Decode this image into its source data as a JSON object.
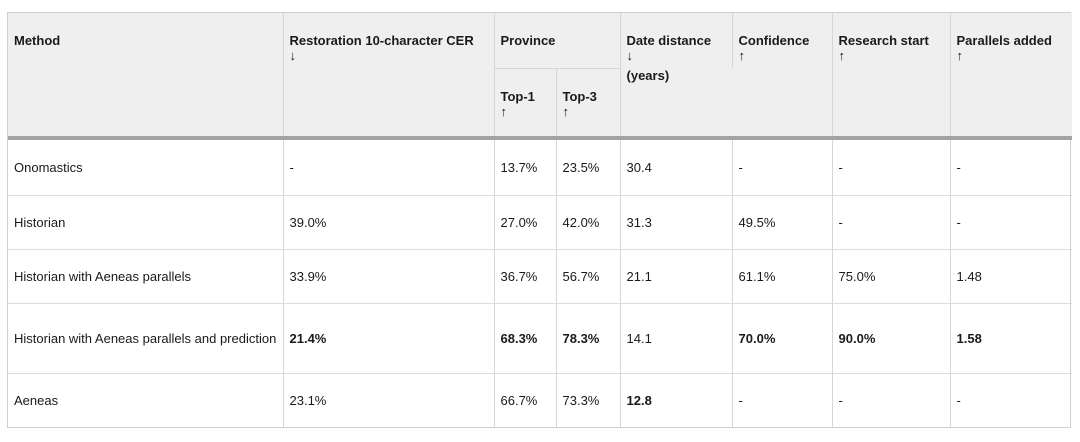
{
  "header": {
    "method": "Method",
    "restoration": "Restoration 10-character CER",
    "restoration_arrow": "↓",
    "province": "Province",
    "top1": "Top-1",
    "top1_arrow": "↑",
    "top3": "Top-3",
    "top3_arrow": "↑",
    "date": "Date distance",
    "date_arrow": "↓",
    "date_units": "(years)",
    "confidence": "Confidence",
    "confidence_arrow": "↑",
    "research": "Research start",
    "research_arrow": "↑",
    "parallels": "Parallels added",
    "parallels_arrow": "↑"
  },
  "rows": [
    {
      "method": "Onomastics",
      "restoration": "-",
      "top1": "13.7%",
      "top3": "23.5%",
      "date": "30.4",
      "confidence": "-",
      "research": "-",
      "parallels": "-"
    },
    {
      "method": "Historian",
      "restoration": "39.0%",
      "top1": "27.0%",
      "top3": "42.0%",
      "date": "31.3",
      "confidence": "49.5%",
      "research": "-",
      "parallels": "-"
    },
    {
      "method": "Historian with Aeneas parallels",
      "restoration": "33.9%",
      "top1": "36.7%",
      "top3": "56.7%",
      "date": "21.1",
      "confidence": "61.1%",
      "research": "75.0%",
      "parallels": "1.48"
    },
    {
      "method": "Historian with Aeneas parallels and prediction",
      "restoration": "21.4%",
      "top1": "68.3%",
      "top3": "78.3%",
      "date": "14.1",
      "confidence": "70.0%",
      "research": "90.0%",
      "parallels": "1.58"
    },
    {
      "method": "Aeneas",
      "restoration": "23.1%",
      "top1": "66.7%",
      "top3": "73.3%",
      "date": "12.8",
      "confidence": "-",
      "research": "-",
      "parallels": "-"
    }
  ]
}
